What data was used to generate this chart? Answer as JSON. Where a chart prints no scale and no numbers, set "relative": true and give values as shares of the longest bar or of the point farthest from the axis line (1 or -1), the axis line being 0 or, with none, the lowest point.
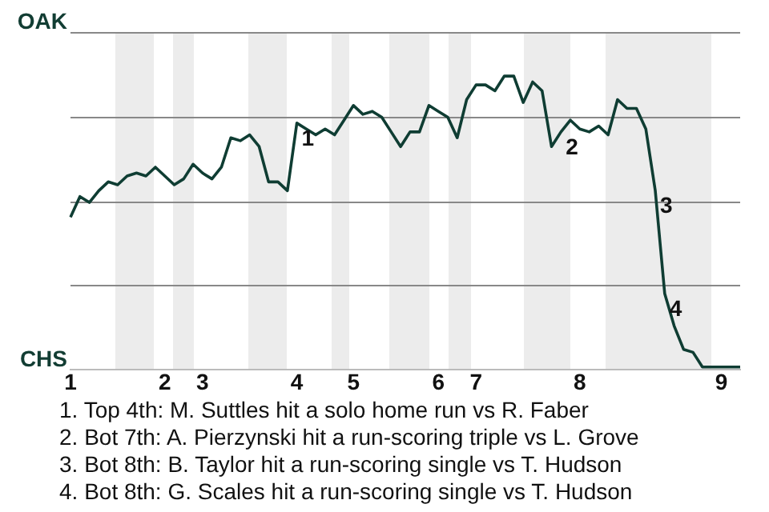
{
  "chart_data": {
    "type": "line",
    "relative": true,
    "categories": [
      "1",
      null,
      null,
      null,
      null,
      null,
      null,
      null,
      null,
      null,
      "2",
      null,
      null,
      null,
      "3",
      null,
      null,
      null,
      null,
      null,
      null,
      null,
      null,
      null,
      "4",
      null,
      null,
      null,
      null,
      null,
      "5",
      null,
      null,
      null,
      null,
      null,
      null,
      null,
      null,
      "6",
      null,
      null,
      null,
      "7",
      null,
      null,
      null,
      null,
      null,
      null,
      null,
      null,
      null,
      null,
      "8",
      null,
      null,
      null,
      null,
      null,
      null,
      null,
      null,
      null,
      null,
      null,
      null,
      null,
      null,
      "9",
      null,
      null
    ],
    "series": [
      {
        "color": "#0f3d33",
        "values": [
          0.52,
          0.59,
          0.57,
          0.61,
          0.64,
          0.63,
          0.66,
          0.67,
          0.66,
          0.69,
          0.66,
          0.63,
          0.65,
          0.7,
          0.67,
          0.65,
          0.69,
          0.79,
          0.78,
          0.8,
          0.76,
          0.64,
          0.64,
          0.61,
          0.84,
          0.82,
          0.8,
          0.82,
          0.8,
          0.85,
          0.9,
          0.87,
          0.88,
          0.86,
          0.81,
          0.76,
          0.81,
          0.81,
          0.9,
          0.88,
          0.86,
          0.79,
          0.92,
          0.97,
          0.97,
          0.95,
          1,
          1,
          0.91,
          0.98,
          0.95,
          0.76,
          0.81,
          0.85,
          0.82,
          0.81,
          0.83,
          0.8,
          0.92,
          0.89,
          0.89,
          0.82,
          0.61,
          0.26,
          0.15,
          0.07,
          0.06,
          0.01,
          0.01,
          0.01,
          0.01,
          0.01
        ]
      }
    ],
    "grid": "y",
    "legend": false,
    "marker": "none",
    "line_style": "solid",
    "annotations": [
      "OAK",
      "CHS",
      "1",
      "2",
      "3",
      "4",
      "1. Top 4th: M. Suttles hit a solo home run vs R. Faber",
      "2. Bot 7th: A. Pierzynski hit a run-scoring triple vs L. Grove",
      "3. Bot 8th: B. Taylor hit a run-scoring single vs T. Hudson",
      "4. Bot 8th: G. Scales hit a run-scoring single vs T. Hudson"
    ]
  }
}
